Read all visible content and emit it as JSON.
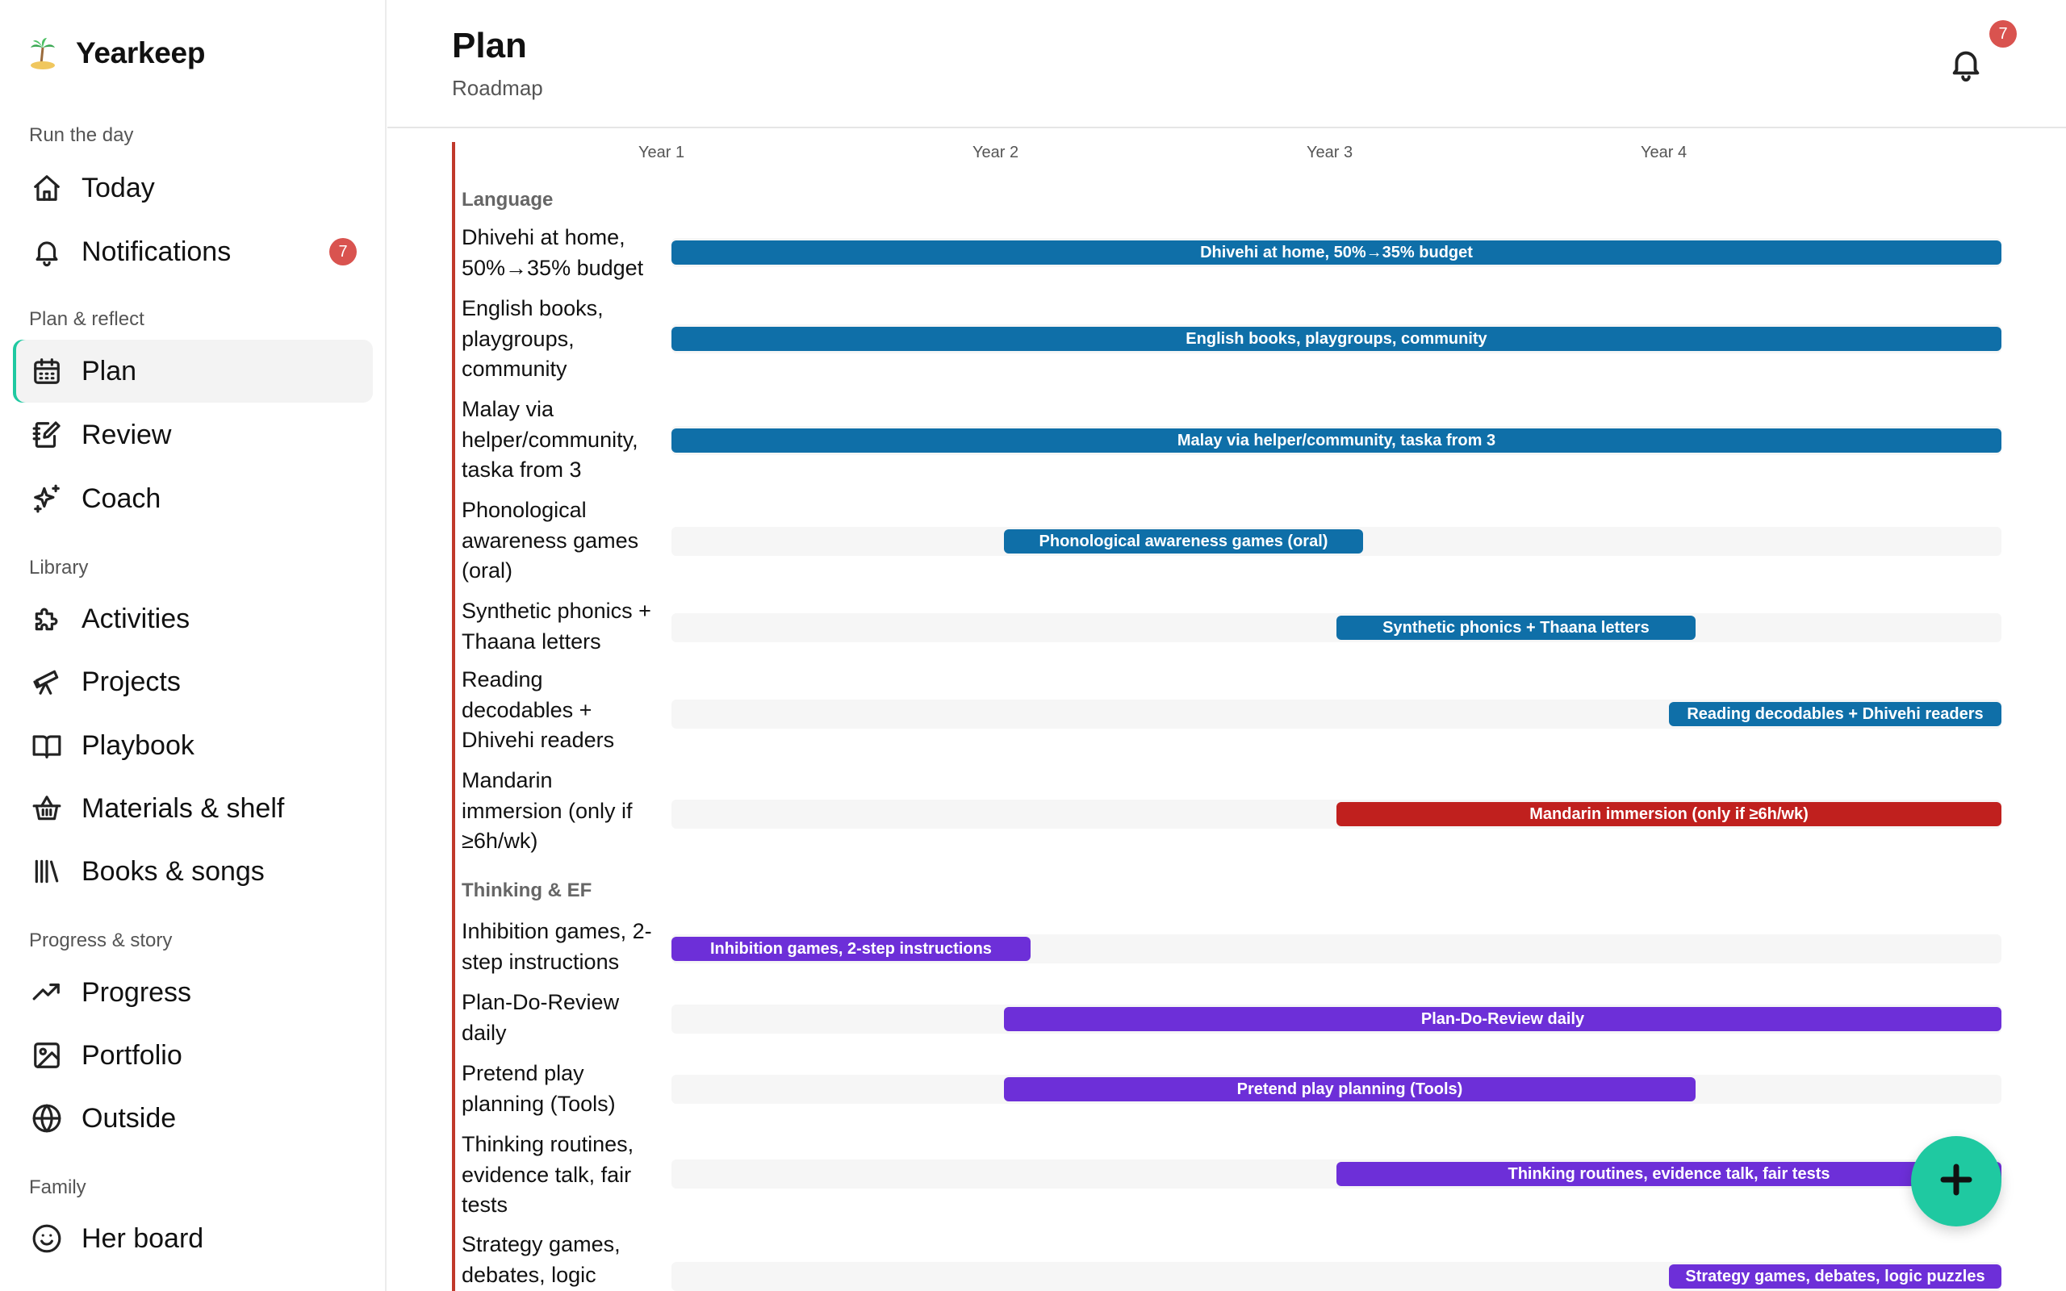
{
  "app": {
    "name": "Yearkeep",
    "logo_icon": "palm-tree-island-icon"
  },
  "sidebar": {
    "sections": [
      {
        "label": "Run the day"
      },
      {
        "label": "Plan & reflect"
      },
      {
        "label": "Library"
      },
      {
        "label": "Progress & story"
      },
      {
        "label": "Family"
      }
    ],
    "items": [
      {
        "label": "Today",
        "icon": "home-icon"
      },
      {
        "label": "Notifications",
        "icon": "bell-icon",
        "badge": "7"
      },
      {
        "label": "Plan",
        "icon": "calendar-icon",
        "active": true
      },
      {
        "label": "Review",
        "icon": "edit-notebook-icon"
      },
      {
        "label": "Coach",
        "icon": "sparkles-icon"
      },
      {
        "label": "Activities",
        "icon": "puzzle-icon"
      },
      {
        "label": "Projects",
        "icon": "telescope-icon"
      },
      {
        "label": "Playbook",
        "icon": "book-open-icon"
      },
      {
        "label": "Materials & shelf",
        "icon": "basket-icon"
      },
      {
        "label": "Books & songs",
        "icon": "library-icon"
      },
      {
        "label": "Progress",
        "icon": "trending-up-icon"
      },
      {
        "label": "Portfolio",
        "icon": "image-icon"
      },
      {
        "label": "Outside",
        "icon": "globe-icon"
      },
      {
        "label": "Her board",
        "icon": "smile-icon"
      }
    ],
    "accent_color": "#1fc9a1"
  },
  "header": {
    "title": "Plan",
    "subtitle": "Roadmap",
    "notifications_badge": "7"
  },
  "roadmap": {
    "years": [
      "Year 1",
      "Year 2",
      "Year 3",
      "Year 4"
    ],
    "colors": {
      "language": "#0f6fa8",
      "warning": "#c0201e",
      "thinking": "#6d2fd8"
    },
    "groups": [
      {
        "label": "Language",
        "rows": [
          {
            "label": "Dhivehi at home, 50%→35% budget",
            "bar": "Dhivehi at home, 50%→35% budget",
            "start_year": 0,
            "end_year": 4,
            "color": "#0f6fa8"
          },
          {
            "label": "English books, playgroups, community",
            "bar": "English books, playgroups, community",
            "start_year": 0,
            "end_year": 4,
            "color": "#0f6fa8"
          },
          {
            "label": "Malay via helper/community, taska from 3",
            "bar": "Malay via helper/community, taska from 3",
            "start_year": 0,
            "end_year": 4,
            "color": "#0f6fa8"
          },
          {
            "label": "Phonological awareness games (oral)",
            "bar": "Phonological awareness games (oral)",
            "start_year": 1,
            "end_year": 2.08,
            "color": "#0f6fa8"
          },
          {
            "label": "Synthetic phonics + Thaana letters",
            "bar": "Synthetic phonics + Thaana letters",
            "start_year": 2,
            "end_year": 3.08,
            "color": "#0f6fa8"
          },
          {
            "label": "Reading decodables + Dhivehi readers",
            "bar": "Reading decodables + Dhivehi readers",
            "start_year": 3,
            "end_year": 4,
            "color": "#0f6fa8"
          },
          {
            "label": "Mandarin immersion (only if ≥6h/wk)",
            "bar": "Mandarin immersion (only if ≥6h/wk)",
            "start_year": 2,
            "end_year": 4,
            "color": "#c0201e"
          }
        ]
      },
      {
        "label": "Thinking & EF",
        "rows": [
          {
            "label": "Inhibition games, 2-step instructions",
            "bar": "Inhibition games, 2-step instructions",
            "start_year": 0,
            "end_year": 1.08,
            "color": "#6d2fd8"
          },
          {
            "label": "Plan-Do-Review daily",
            "bar": "Plan-Do-Review daily",
            "start_year": 1,
            "end_year": 4,
            "color": "#6d2fd8"
          },
          {
            "label": "Pretend play planning (Tools)",
            "bar": "Pretend play planning (Tools)",
            "start_year": 1,
            "end_year": 3.08,
            "color": "#6d2fd8"
          },
          {
            "label": "Thinking routines, evidence talk, fair tests",
            "bar": "Thinking routines, evidence talk, fair tests",
            "start_year": 2,
            "end_year": 4,
            "color": "#6d2fd8"
          },
          {
            "label": "Strategy games, debates, logic puzzles",
            "bar": "Strategy games, debates, logic puzzles",
            "start_year": 3,
            "end_year": 4,
            "color": "#6d2fd8"
          }
        ]
      }
    ]
  },
  "fab": {
    "icon": "plus-icon"
  }
}
